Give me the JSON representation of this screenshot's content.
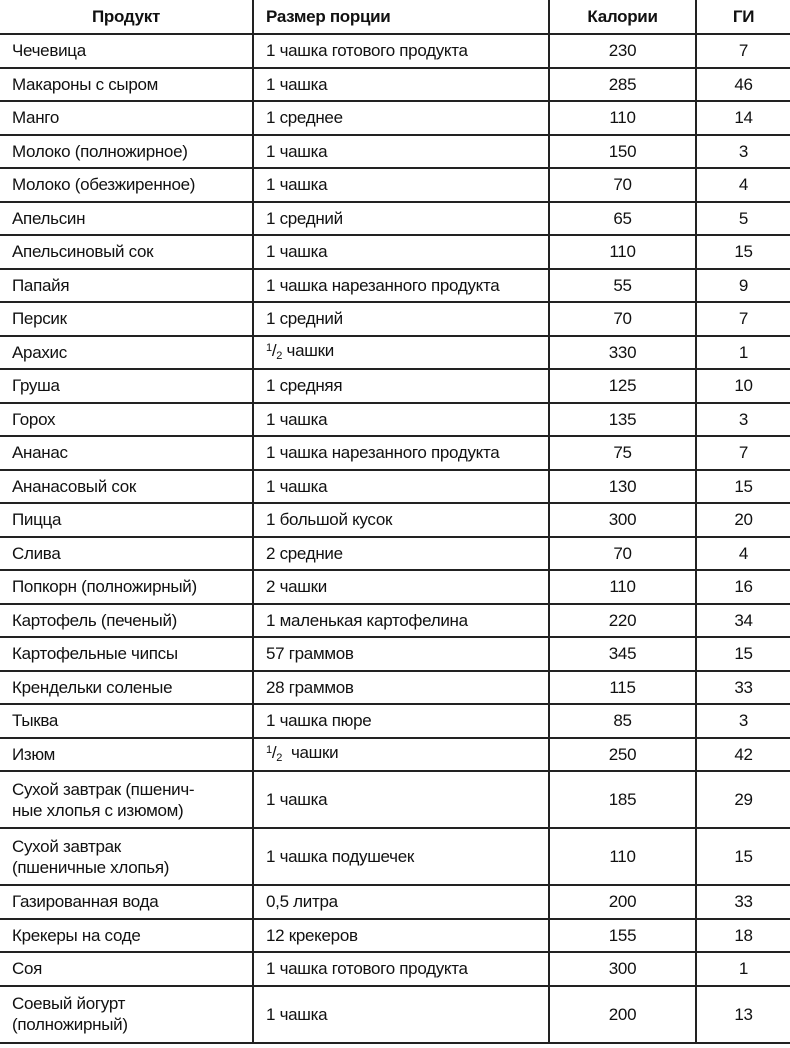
{
  "headers": [
    "Продукт",
    "Размер порции",
    "Калории",
    "ГИ"
  ],
  "rows": [
    [
      "Чечевица",
      "1 чашка готового продукта",
      "230",
      "7"
    ],
    [
      "Макароны с сыром",
      "1 чашка",
      "285",
      "46"
    ],
    [
      "Манго",
      "1 среднее",
      "110",
      "14"
    ],
    [
      "Молоко (полножирное)",
      "1 чашка",
      "150",
      "3"
    ],
    [
      "Молоко (обезжиренное)",
      "1 чашка",
      "70",
      "4"
    ],
    [
      "Апельсин",
      "1 средний",
      "65",
      "5"
    ],
    [
      "Апельсиновый сок",
      "1 чашка",
      "110",
      "15"
    ],
    [
      "Папайя",
      "1 чашка нарезанного продукта",
      "55",
      "9"
    ],
    [
      "Персик",
      "1 средний",
      "70",
      "7"
    ],
    [
      "Арахис",
      "1/2 чашки",
      "330",
      "1"
    ],
    [
      "Груша",
      "1 средняя",
      "125",
      "10"
    ],
    [
      "Горох",
      "1 чашка",
      "135",
      "3"
    ],
    [
      "Ананас",
      "1 чашка нарезанного продукта",
      "75",
      "7"
    ],
    [
      "Ананасовый сок",
      "1 чашка",
      "130",
      "15"
    ],
    [
      "Пицца",
      "1 большой кусок",
      "300",
      "20"
    ],
    [
      "Слива",
      "2 средние",
      "70",
      "4"
    ],
    [
      "Попкорн (полножирный)",
      "2 чашки",
      "110",
      "16"
    ],
    [
      "Картофель (печеный)",
      "1 маленькая картофелина",
      "220",
      "34"
    ],
    [
      "Картофельные чипсы",
      "57 граммов",
      "345",
      "15"
    ],
    [
      "Крендельки соленые",
      "28 граммов",
      "115",
      "33"
    ],
    [
      "Тыква",
      "1 чашка пюре",
      "85",
      "3"
    ],
    [
      "Изюм",
      "1/2  чашки",
      "250",
      "42"
    ],
    [
      "Сухой завтрак (пшенич-\nные хлопья с изюмом)",
      "1 чашка",
      "185",
      "29"
    ],
    [
      "Сухой завтрак\n(пшеничные хлопья)",
      "1 чашка подушечек",
      "110",
      "15"
    ],
    [
      "Газированная вода",
      "0,5 литра",
      "200",
      "33"
    ],
    [
      "Крекеры на соде",
      "12 крекеров",
      "155",
      "18"
    ],
    [
      "Соя",
      "1 чашка готового продукта",
      "300",
      "1"
    ],
    [
      "Соевый йогурт\n(полножирный)",
      "1 чашка",
      "200",
      "13"
    ]
  ]
}
